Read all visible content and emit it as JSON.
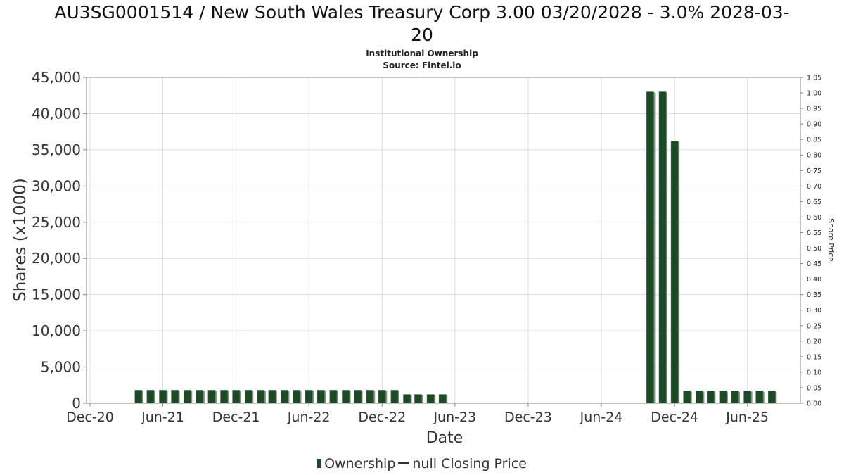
{
  "title_line1": "AU3SG0001514 / New South Wales Treasury Corp 3.00 03/20/2028 - 3.0% 2028-03-",
  "title_line2": "20",
  "subtitle_line1": "Institutional Ownership",
  "subtitle_line2": "Source: Fintel.io",
  "legend": {
    "ownership": "Ownership",
    "price": "null Closing Price"
  },
  "colors": {
    "bar": "#1d4a26",
    "bar_shadow": "#8c8c8c",
    "grid": "#dddddd",
    "axis": "#888888"
  },
  "chart_data": {
    "type": "bar",
    "xlabel": "Date",
    "ylabel": "Shares (x1000)",
    "y2label": "Share Price",
    "ylim": [
      0,
      45000
    ],
    "y2lim": [
      0,
      1.05
    ],
    "yticks": [
      "0",
      "5,000",
      "10,000",
      "15,000",
      "20,000",
      "25,000",
      "30,000",
      "35,000",
      "40,000",
      "45,000"
    ],
    "y2ticks": [
      "0.00",
      "0.05",
      "0.10",
      "0.15",
      "0.20",
      "0.25",
      "0.30",
      "0.35",
      "0.40",
      "0.45",
      "0.50",
      "0.55",
      "0.60",
      "0.65",
      "0.70",
      "0.75",
      "0.80",
      "0.85",
      "0.90",
      "0.95",
      "1.00",
      "1.05"
    ],
    "xticks": [
      {
        "label": "Dec-20",
        "date": "2020-12-01"
      },
      {
        "label": "Jun-21",
        "date": "2021-06-01"
      },
      {
        "label": "Dec-21",
        "date": "2021-12-01"
      },
      {
        "label": "Jun-22",
        "date": "2022-06-01"
      },
      {
        "label": "Dec-22",
        "date": "2022-12-01"
      },
      {
        "label": "Jun-23",
        "date": "2023-06-01"
      },
      {
        "label": "Dec-23",
        "date": "2023-12-01"
      },
      {
        "label": "Jun-24",
        "date": "2024-06-01"
      },
      {
        "label": "Dec-24",
        "date": "2024-12-01"
      },
      {
        "label": "Jun-25",
        "date": "2025-06-01"
      }
    ],
    "grid": true,
    "legend_position": "bottom",
    "series": [
      {
        "name": "Ownership",
        "points": [
          {
            "date": "2021-04-01",
            "value": 1800
          },
          {
            "date": "2021-05-01",
            "value": 1800
          },
          {
            "date": "2021-06-01",
            "value": 1800
          },
          {
            "date": "2021-07-01",
            "value": 1800
          },
          {
            "date": "2021-08-01",
            "value": 1800
          },
          {
            "date": "2021-09-01",
            "value": 1800
          },
          {
            "date": "2021-10-01",
            "value": 1800
          },
          {
            "date": "2021-11-01",
            "value": 1800
          },
          {
            "date": "2021-12-01",
            "value": 1800
          },
          {
            "date": "2022-01-01",
            "value": 1800
          },
          {
            "date": "2022-02-01",
            "value": 1800
          },
          {
            "date": "2022-03-01",
            "value": 1800
          },
          {
            "date": "2022-04-01",
            "value": 1800
          },
          {
            "date": "2022-05-01",
            "value": 1800
          },
          {
            "date": "2022-06-01",
            "value": 1800
          },
          {
            "date": "2022-07-01",
            "value": 1800
          },
          {
            "date": "2022-08-01",
            "value": 1800
          },
          {
            "date": "2022-09-01",
            "value": 1800
          },
          {
            "date": "2022-10-01",
            "value": 1800
          },
          {
            "date": "2022-11-01",
            "value": 1800
          },
          {
            "date": "2022-12-01",
            "value": 1800
          },
          {
            "date": "2023-01-01",
            "value": 1800
          },
          {
            "date": "2023-02-01",
            "value": 1200
          },
          {
            "date": "2023-03-01",
            "value": 1200
          },
          {
            "date": "2023-04-01",
            "value": 1200
          },
          {
            "date": "2023-05-01",
            "value": 1200
          },
          {
            "date": "2024-10-01",
            "value": 43000
          },
          {
            "date": "2024-11-01",
            "value": 43000
          },
          {
            "date": "2024-12-01",
            "value": 36200
          },
          {
            "date": "2025-01-01",
            "value": 1700
          },
          {
            "date": "2025-02-01",
            "value": 1700
          },
          {
            "date": "2025-03-01",
            "value": 1700
          },
          {
            "date": "2025-04-01",
            "value": 1700
          },
          {
            "date": "2025-05-01",
            "value": 1700
          },
          {
            "date": "2025-06-01",
            "value": 1700
          },
          {
            "date": "2025-07-01",
            "value": 1700
          },
          {
            "date": "2025-08-01",
            "value": 1700
          }
        ]
      }
    ]
  }
}
